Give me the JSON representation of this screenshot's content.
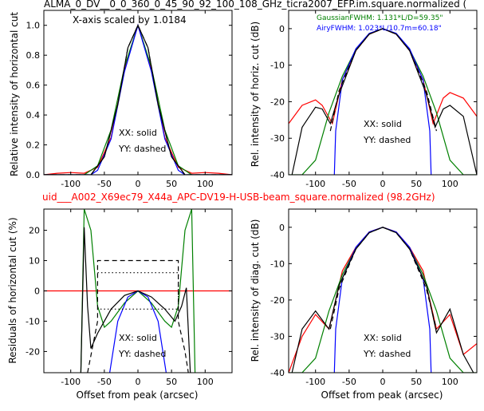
{
  "chart_data": [
    {
      "type": "line",
      "title": "ALMA_0_DV__0_0_360_0_45_90_92_100_108_GHz_ticra2007_EFP.im.square.normalized (",
      "annotation": "X-axis scaled by 1.0184",
      "xlabel": "",
      "ylabel": "Relative intensity of horizontal cut",
      "xlim": [
        -140,
        140
      ],
      "ylim": [
        0,
        1.1
      ],
      "xticks": [
        "-100",
        "-50",
        "0",
        "50",
        "100"
      ],
      "yticks": [
        "0.0",
        "0.2",
        "0.4",
        "0.6",
        "0.8",
        "1.0"
      ],
      "legend_text": [
        "XX: solid",
        "YY: dashed"
      ],
      "series": [
        {
          "color": "#ff0000",
          "style": "solid",
          "x": [
            -140,
            -120,
            -100,
            -80,
            -60,
            -40,
            -20,
            0,
            20,
            40,
            60,
            80,
            100,
            120,
            140
          ],
          "y": [
            0.0,
            0.01,
            0.015,
            0.01,
            0.05,
            0.25,
            0.7,
            1.0,
            0.7,
            0.25,
            0.05,
            0.01,
            0.015,
            0.01,
            0.0
          ]
        },
        {
          "color": "#008000",
          "style": "solid",
          "x": [
            -140,
            -100,
            -80,
            -60,
            -40,
            -20,
            0,
            20,
            40,
            60,
            80,
            100,
            140
          ],
          "y": [
            0.0,
            0.0,
            0.0,
            0.06,
            0.3,
            0.72,
            1.0,
            0.72,
            0.3,
            0.06,
            0.0,
            0.0,
            0.0
          ]
        },
        {
          "color": "#0000ff",
          "style": "solid",
          "x": [
            -140,
            -70,
            -60,
            -40,
            -20,
            0,
            20,
            40,
            60,
            70,
            140
          ],
          "y": [
            0.0,
            0.0,
            0.03,
            0.24,
            0.69,
            1.0,
            0.69,
            0.24,
            0.03,
            0.0,
            0.0
          ]
        },
        {
          "color": "#000000",
          "style": "solid",
          "x": [
            -140,
            -100,
            -70,
            -50,
            -30,
            -15,
            0,
            15,
            30,
            50,
            70,
            100,
            140
          ],
          "y": [
            0.0,
            0.0,
            0.0,
            0.12,
            0.47,
            0.85,
            1.0,
            0.85,
            0.47,
            0.12,
            0.0,
            0.0,
            0.0
          ]
        },
        {
          "color": "#000000",
          "style": "dashed",
          "x": [
            -140,
            -70,
            -50,
            -30,
            -15,
            0,
            15,
            30,
            50,
            70,
            140
          ],
          "y": [
            0.0,
            0.0,
            0.12,
            0.47,
            0.85,
            1.0,
            0.85,
            0.47,
            0.12,
            0.0,
            0.0
          ]
        }
      ]
    },
    {
      "type": "line",
      "title": "",
      "xlabel": "",
      "ylabel": "Rel. intensity of horiz. cut (dB)",
      "xlim": [
        -140,
        140
      ],
      "ylim": [
        -40,
        5
      ],
      "xticks": [
        "-100",
        "-50",
        "0",
        "50",
        "100"
      ],
      "yticks": [
        "-40",
        "-30",
        "-20",
        "-10",
        "0"
      ],
      "legend_text": [
        "XX: solid",
        "YY: dashed"
      ],
      "fit_labels": [
        {
          "text": "GaussianFWHM: 1.131*L/D=59.35\"",
          "color": "#008000"
        },
        {
          "text": "AiryFWHM: 1.023*L/10.7m=60.18\"",
          "color": "#0000ff"
        }
      ],
      "series": [
        {
          "color": "#ff0000",
          "style": "solid",
          "x": [
            -140,
            -120,
            -100,
            -90,
            -75,
            -60,
            -40,
            -20,
            0,
            20,
            40,
            60,
            75,
            90,
            100,
            120,
            140
          ],
          "y": [
            -26,
            -21,
            -19.5,
            -21,
            -26,
            -14,
            -6,
            -1.5,
            0,
            -1.5,
            -6,
            -14,
            -26,
            -19,
            -17.5,
            -19,
            -24
          ]
        },
        {
          "color": "#008000",
          "style": "solid",
          "x": [
            -140,
            -120,
            -100,
            -80,
            -60,
            -40,
            -20,
            0,
            20,
            40,
            60,
            80,
            100,
            120,
            140
          ],
          "y": [
            -40,
            -40,
            -36,
            -23,
            -13,
            -5.7,
            -1.4,
            0,
            -1.4,
            -5.7,
            -13,
            -23,
            -36,
            -40,
            -40
          ]
        },
        {
          "color": "#0000ff",
          "style": "solid",
          "x": [
            -72,
            -70,
            -60,
            -40,
            -20,
            0,
            20,
            40,
            60,
            70,
            72
          ],
          "y": [
            -40,
            -28,
            -14,
            -5.5,
            -1.3,
            0,
            -1.3,
            -5.5,
            -14,
            -28,
            -40
          ]
        },
        {
          "color": "#000000",
          "style": "solid",
          "x": [
            -135,
            -120,
            -100,
            -90,
            -78,
            -65,
            -40,
            -20,
            0,
            20,
            40,
            65,
            78,
            90,
            100,
            120,
            140
          ],
          "y": [
            -40,
            -27,
            -21.5,
            -22,
            -26,
            -18,
            -6,
            -1.5,
            0,
            -1.5,
            -6,
            -18,
            -27,
            -22,
            -21,
            -24,
            -40
          ]
        },
        {
          "color": "#000000",
          "style": "dashed",
          "x": [
            -78,
            -65,
            -40,
            -20,
            0,
            20,
            40,
            65,
            80
          ],
          "y": [
            -28,
            -17,
            -6,
            -1.5,
            0,
            -1.5,
            -6,
            -17,
            -28
          ]
        }
      ]
    },
    {
      "type": "line",
      "title": "uid___A002_X69ec79_X44a_APC-DV19-H-USB-beam_square.normalized (98.2GHz)",
      "xlabel": "Offset from peak (arcsec)",
      "ylabel": "Residuals of horizontal cut (%)",
      "xlim": [
        -140,
        140
      ],
      "ylim": [
        -27,
        27
      ],
      "xticks": [
        "-100",
        "-50",
        "0",
        "50",
        "100"
      ],
      "yticks": [
        "-20",
        "-10",
        "0",
        "10",
        "20"
      ],
      "legend_text": [
        "XX: solid",
        "YY: dashed"
      ],
      "series": [
        {
          "color": "#ff0000",
          "style": "solid",
          "x": [
            -140,
            140
          ],
          "y": [
            0,
            0
          ]
        },
        {
          "color": "#008000",
          "style": "solid",
          "x": [
            -85,
            -80,
            -70,
            -60,
            -50,
            -40,
            -20,
            0,
            20,
            40,
            50,
            60,
            70,
            80,
            85
          ],
          "y": [
            -27,
            27,
            20,
            -5,
            -12,
            -10,
            -4,
            0,
            -4,
            -10,
            -12,
            -5,
            20,
            27,
            -27
          ]
        },
        {
          "color": "#0000ff",
          "style": "solid",
          "x": [
            -42,
            -30,
            -15,
            0,
            15,
            30,
            42
          ],
          "y": [
            -27,
            -10,
            -2,
            0,
            -2,
            -10,
            -27
          ]
        },
        {
          "color": "#000000",
          "style": "solid",
          "x": [
            -85,
            -80,
            -75,
            -70,
            -60,
            -40,
            -20,
            0,
            20,
            40,
            55,
            65,
            72,
            78
          ],
          "y": [
            -27,
            21,
            -5,
            -19,
            -14,
            -6,
            -1.5,
            0,
            -2,
            -6,
            -10,
            -5,
            1,
            -27
          ]
        },
        {
          "color": "#000000",
          "style": "dashed",
          "x": [
            -75,
            -60,
            -60,
            60,
            60,
            70,
            75
          ],
          "y": [
            -27,
            -10,
            10,
            10,
            -10,
            -20,
            -27
          ]
        },
        {
          "color": "#000000",
          "style": "dotted",
          "x": [
            -60,
            -55,
            55,
            60,
            60,
            -55,
            -60
          ],
          "y": [
            6,
            6,
            6,
            6,
            -6,
            -6,
            -6
          ]
        }
      ]
    },
    {
      "type": "line",
      "title": "",
      "xlabel": "Offset from peak (arcsec)",
      "ylabel": "Rel. intensity of diag. cut (dB)",
      "xlim": [
        -140,
        140
      ],
      "ylim": [
        -40,
        5
      ],
      "xticks": [
        "-100",
        "-50",
        "0",
        "50",
        "100"
      ],
      "yticks": [
        "-40",
        "-30",
        "-20",
        "-10",
        "0"
      ],
      "legend_text": [
        "XX: solid",
        "YY: dashed"
      ],
      "series": [
        {
          "color": "#ff0000",
          "style": "solid",
          "x": [
            -140,
            -120,
            -100,
            -80,
            -60,
            -40,
            -20,
            0,
            20,
            40,
            60,
            80,
            100,
            120,
            140
          ],
          "y": [
            -40,
            -30,
            -24,
            -28,
            -12,
            -5.5,
            -1.3,
            0,
            -1.3,
            -5.5,
            -12,
            -28,
            -24,
            -35,
            -32
          ]
        },
        {
          "color": "#008000",
          "style": "solid",
          "x": [
            -140,
            -120,
            -100,
            -80,
            -60,
            -40,
            -20,
            0,
            20,
            40,
            60,
            80,
            100,
            120,
            140
          ],
          "y": [
            -40,
            -40,
            -36,
            -23,
            -13,
            -5.7,
            -1.4,
            0,
            -1.4,
            -5.7,
            -13,
            -23,
            -36,
            -40,
            -40
          ]
        },
        {
          "color": "#0000ff",
          "style": "solid",
          "x": [
            -72,
            -70,
            -60,
            -40,
            -20,
            0,
            20,
            40,
            60,
            70,
            72
          ],
          "y": [
            -40,
            -28,
            -14,
            -5.5,
            -1.3,
            0,
            -1.3,
            -5.5,
            -14,
            -28,
            -40
          ]
        },
        {
          "color": "#000000",
          "style": "solid",
          "x": [
            -135,
            -120,
            -100,
            -80,
            -65,
            -40,
            -20,
            0,
            20,
            40,
            65,
            80,
            100,
            120,
            135
          ],
          "y": [
            -40,
            -28,
            -23,
            -28,
            -16,
            -6,
            -1.5,
            0,
            -1.5,
            -6,
            -16,
            -29,
            -22.5,
            -35,
            -40
          ]
        },
        {
          "color": "#000000",
          "style": "dashed",
          "x": [
            -78,
            -65,
            -40,
            -20,
            0,
            20,
            40,
            65,
            80
          ],
          "y": [
            -28,
            -17,
            -6,
            -1.5,
            0,
            -1.5,
            -6,
            -17,
            -28
          ]
        }
      ]
    }
  ]
}
